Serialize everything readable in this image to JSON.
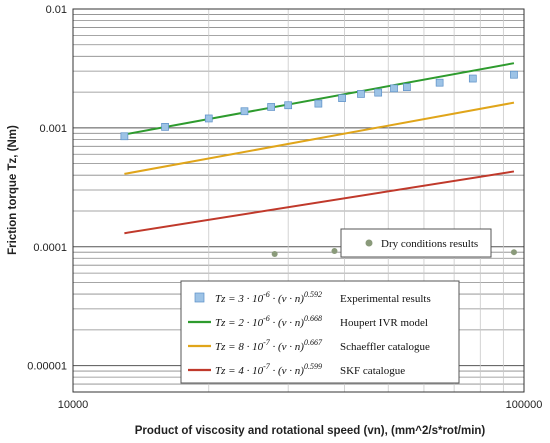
{
  "chart_data": {
    "type": "scatter",
    "xlabel": "Product of viscosity and rotational speed (vn), (mm^2/s*rot/min)",
    "ylabel": "Friction torque Tz, (Nm)",
    "xscale": "log",
    "yscale": "log",
    "xlim": [
      10000,
      100000
    ],
    "ylim": [
      6e-06,
      0.01
    ],
    "x_ticks": [
      "10000",
      "100000"
    ],
    "y_ticks": [
      "0.01",
      "0.001",
      "0.0001",
      "0.00001"
    ],
    "grid": "major and minor horizontal, vertical",
    "series": [
      {
        "name": "Experimental results",
        "kind": "points",
        "marker": "square",
        "color": "#9dc3e6",
        "formula": {
          "coef": "3",
          "exp10": "-6",
          "power": "0.592"
        },
        "x": [
          13000,
          16000,
          20000,
          24000,
          27500,
          30000,
          35000,
          39500,
          43500,
          47500,
          51500,
          55000,
          65000,
          77000,
          95000
        ],
        "y": [
          0.00085,
          0.00102,
          0.0012,
          0.00138,
          0.0015,
          0.00155,
          0.0016,
          0.00178,
          0.00193,
          0.00198,
          0.00215,
          0.0022,
          0.0024,
          0.0026,
          0.0028
        ]
      },
      {
        "name": "Houpert IVR model",
        "kind": "line",
        "color": "#2e9b2e",
        "formula": {
          "coef": "2",
          "exp10": "-6",
          "power": "0.668"
        },
        "x": [
          13000,
          95000
        ],
        "y": [
          0.00088,
          0.0035
        ]
      },
      {
        "name": "Schaeffler catalogue",
        "kind": "line",
        "color": "#e0a51a",
        "formula": {
          "coef": "8",
          "exp10": "-7",
          "power": "0.667"
        },
        "x": [
          13000,
          95000
        ],
        "y": [
          0.00041,
          0.00163
        ]
      },
      {
        "name": "SKF catalogue",
        "kind": "line",
        "color": "#c0392b",
        "formula": {
          "coef": "4",
          "exp10": "-7",
          "power": "0.599"
        },
        "x": [
          13000,
          95000
        ],
        "y": [
          0.00013,
          0.00043
        ]
      },
      {
        "name": "Dry conditions results",
        "kind": "points",
        "marker": "circle",
        "color": "#8a9a7a",
        "x": [
          38000,
          51500,
          65000,
          77000,
          95000
        ],
        "y": [
          9.2e-05,
          9.1e-05,
          8.8e-05,
          8.9e-05,
          9e-05
        ]
      }
    ],
    "extra_dry_point": {
      "x": 28000,
      "y": 8.7e-05
    },
    "legend_main": "bottom-center",
    "legend_dry": "right-middle"
  }
}
